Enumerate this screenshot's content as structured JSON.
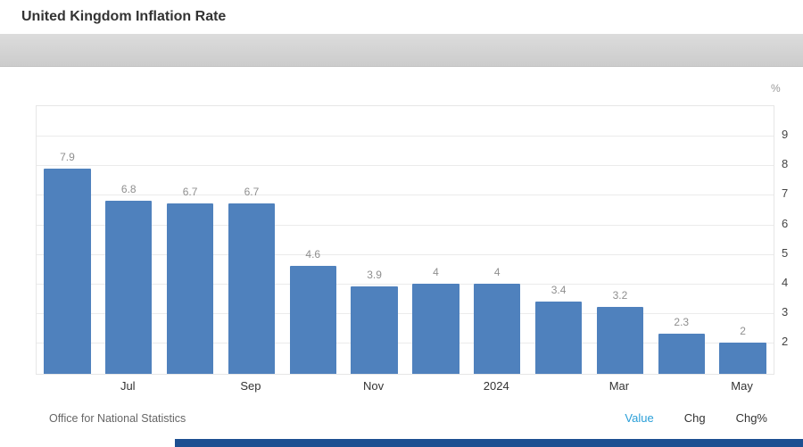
{
  "header": {
    "title": "United Kingdom Inflation Rate"
  },
  "chart_data": {
    "type": "bar",
    "title": "United Kingdom Inflation Rate",
    "unit": "%",
    "values": [
      7.9,
      6.8,
      6.7,
      6.7,
      4.6,
      3.9,
      4,
      4,
      3.4,
      3.2,
      2.3,
      2
    ],
    "value_labels": [
      "7.9",
      "6.8",
      "6.7",
      "6.7",
      "4.6",
      "3.9",
      "4",
      "4",
      "3.4",
      "3.2",
      "2.3",
      "2"
    ],
    "x_ticks": [
      {
        "index": 1,
        "label": "Jul"
      },
      {
        "index": 3,
        "label": "Sep"
      },
      {
        "index": 5,
        "label": "Nov"
      },
      {
        "index": 7,
        "label": "2024"
      },
      {
        "index": 9,
        "label": "Mar"
      },
      {
        "index": 11,
        "label": "May"
      }
    ],
    "y_ticks": [
      2,
      3,
      4,
      5,
      6,
      7,
      8,
      9
    ],
    "ylim": [
      0.95,
      10.0
    ],
    "bar_color": "#4f81bd",
    "grid": true,
    "legend": "none"
  },
  "footer": {
    "source": "Office for National Statistics",
    "links": [
      {
        "label": "Value",
        "color": "#2a9fd8"
      },
      {
        "label": "Chg",
        "color": "#333333"
      },
      {
        "label": "Chg%",
        "color": "#333333"
      }
    ]
  }
}
